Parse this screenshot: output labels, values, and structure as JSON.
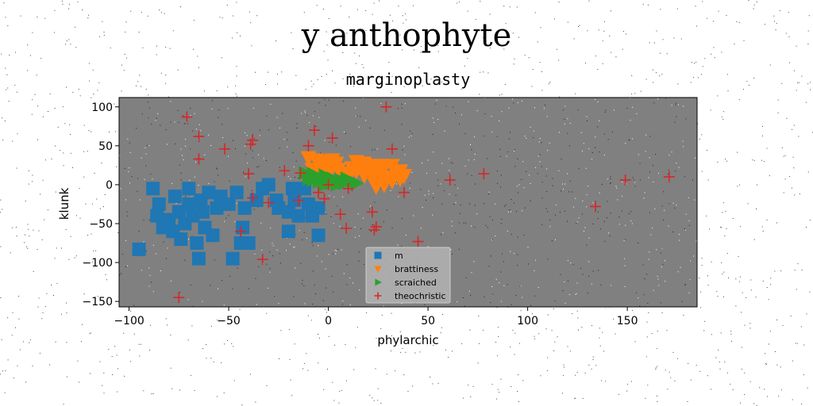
{
  "figure": {
    "suptitle": "y anthophyte"
  },
  "chart_data": {
    "type": "scatter",
    "title": "marginoplasty",
    "xlabel": "phylarchic",
    "ylabel": "klunk",
    "xlim": [
      -105,
      185
    ],
    "ylim": [
      -157,
      112
    ],
    "xticks": [
      -100,
      -50,
      0,
      50,
      100,
      150
    ],
    "yticks": [
      -150,
      -100,
      -50,
      0,
      50,
      100
    ],
    "xtick_labels": [
      "−100",
      "−50",
      "0",
      "50",
      "100",
      "150"
    ],
    "ytick_labels": [
      "−150",
      "−100",
      "−50",
      "0",
      "50",
      "100"
    ],
    "grid": false,
    "legend_position": "lower-center",
    "background": "#808080",
    "series": [
      {
        "name": "m",
        "marker": "square",
        "color": "#1f77b4",
        "points": [
          [
            -95,
            -83
          ],
          [
            -88,
            -5
          ],
          [
            -86,
            -40
          ],
          [
            -85,
            -25
          ],
          [
            -83,
            -55
          ],
          [
            -80,
            -45
          ],
          [
            -78,
            -60
          ],
          [
            -77,
            -15
          ],
          [
            -75,
            -35
          ],
          [
            -74,
            -70
          ],
          [
            -72,
            -50
          ],
          [
            -70,
            -25
          ],
          [
            -70,
            -5
          ],
          [
            -68,
            -40
          ],
          [
            -66,
            -75
          ],
          [
            -65,
            -95
          ],
          [
            -64,
            -20
          ],
          [
            -63,
            -35
          ],
          [
            -62,
            -55
          ],
          [
            -60,
            -10
          ],
          [
            -58,
            -65
          ],
          [
            -56,
            -30
          ],
          [
            -54,
            -15
          ],
          [
            -50,
            -25
          ],
          [
            -48,
            -95
          ],
          [
            -46,
            -10
          ],
          [
            -44,
            -75
          ],
          [
            -43,
            -55
          ],
          [
            -42,
            -30
          ],
          [
            -40,
            -75
          ],
          [
            -36,
            -20
          ],
          [
            -33,
            -5
          ],
          [
            -30,
            0
          ],
          [
            -26,
            -20
          ],
          [
            -25,
            -30
          ],
          [
            -20,
            -35
          ],
          [
            -20,
            -60
          ],
          [
            -18,
            -5
          ],
          [
            -17,
            -20
          ],
          [
            -15,
            -40
          ],
          [
            -12,
            -5
          ],
          [
            -10,
            -25
          ],
          [
            -8,
            -40
          ],
          [
            -5,
            -65
          ],
          [
            -5,
            -30
          ]
        ]
      },
      {
        "name": "brattiness",
        "marker": "triangle-down",
        "color": "#ff7f0e",
        "points": [
          [
            -10,
            35
          ],
          [
            -6,
            32
          ],
          [
            -3,
            30
          ],
          [
            0,
            28
          ],
          [
            2,
            32
          ],
          [
            4,
            28
          ],
          [
            -8,
            20
          ],
          [
            -5,
            16
          ],
          [
            -2,
            22
          ],
          [
            1,
            18
          ],
          [
            5,
            20
          ],
          [
            8,
            15
          ],
          [
            10,
            10
          ],
          [
            12,
            22
          ],
          [
            14,
            18
          ],
          [
            16,
            25
          ],
          [
            18,
            12
          ],
          [
            20,
            20
          ],
          [
            22,
            8
          ],
          [
            24,
            15
          ],
          [
            26,
            18
          ],
          [
            28,
            22
          ],
          [
            30,
            10
          ],
          [
            32,
            25
          ],
          [
            34,
            15
          ],
          [
            36,
            8
          ],
          [
            38,
            12
          ],
          [
            22,
            25
          ],
          [
            25,
            5
          ],
          [
            28,
            0
          ],
          [
            32,
            5
          ],
          [
            36,
            18
          ],
          [
            14,
            30
          ],
          [
            18,
            28
          ],
          [
            24,
            -2
          ],
          [
            26,
            25
          ]
        ]
      },
      {
        "name": "scraiched",
        "marker": "triangle-right",
        "color": "#2ca02c",
        "points": [
          [
            -12,
            15
          ],
          [
            -10,
            12
          ],
          [
            -8,
            14
          ],
          [
            -6,
            10
          ],
          [
            -4,
            8
          ],
          [
            -2,
            12
          ],
          [
            0,
            6
          ],
          [
            2,
            8
          ],
          [
            4,
            4
          ],
          [
            6,
            6
          ],
          [
            8,
            2
          ],
          [
            10,
            5
          ],
          [
            -8,
            6
          ],
          [
            -5,
            4
          ],
          [
            -2,
            0
          ],
          [
            1,
            2
          ],
          [
            4,
            0
          ],
          [
            7,
            3
          ],
          [
            12,
            4
          ],
          [
            14,
            2
          ],
          [
            -10,
            8
          ],
          [
            -3,
            6
          ],
          [
            9,
            8
          ]
        ]
      },
      {
        "name": "theochristic",
        "marker": "plus",
        "color": "#d62728",
        "points": [
          [
            -75,
            -145
          ],
          [
            -71,
            87
          ],
          [
            -65,
            62
          ],
          [
            -65,
            33
          ],
          [
            -52,
            46
          ],
          [
            -44,
            -60
          ],
          [
            -40,
            14
          ],
          [
            -39,
            52
          ],
          [
            -38,
            57
          ],
          [
            -38,
            -17
          ],
          [
            -33,
            -96
          ],
          [
            -30,
            -23
          ],
          [
            -22,
            18
          ],
          [
            -15,
            -20
          ],
          [
            -14,
            15
          ],
          [
            -10,
            50
          ],
          [
            -7,
            70
          ],
          [
            -5,
            -10
          ],
          [
            -2,
            -18
          ],
          [
            0,
            0
          ],
          [
            2,
            60
          ],
          [
            6,
            -38
          ],
          [
            9,
            -56
          ],
          [
            10,
            -5
          ],
          [
            22,
            -35
          ],
          [
            23,
            -58
          ],
          [
            24,
            -54
          ],
          [
            29,
            100
          ],
          [
            32,
            46
          ],
          [
            38,
            -10
          ],
          [
            45,
            -73
          ],
          [
            61,
            6
          ],
          [
            78,
            14
          ],
          [
            134,
            -28
          ],
          [
            149,
            6
          ],
          [
            171,
            10
          ]
        ]
      }
    ]
  }
}
